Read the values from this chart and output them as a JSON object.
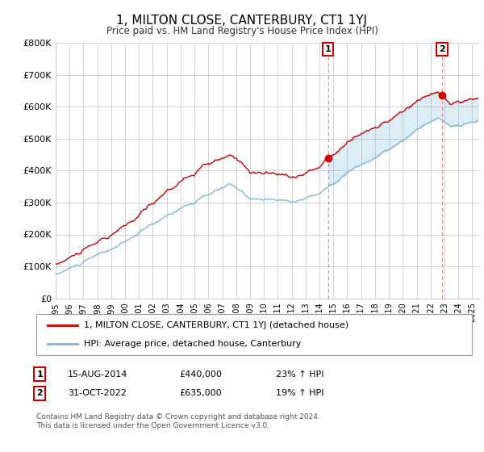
{
  "title": "1, MILTON CLOSE, CANTERBURY, CT1 1YJ",
  "subtitle": "Price paid vs. HM Land Registry's House Price Index (HPI)",
  "ylim": [
    0,
    800000
  ],
  "xlim_start": 1995.0,
  "xlim_end": 2025.5,
  "hpi_color": "#7ab8d9",
  "price_color": "#CC0000",
  "fill_color": "#d6eaf8",
  "marker1_date": 2014.62,
  "marker1_price": 440000,
  "marker1_label": "1",
  "marker2_date": 2022.83,
  "marker2_price": 635000,
  "marker2_label": "2",
  "legend_line1": "1, MILTON CLOSE, CANTERBURY, CT1 1YJ (detached house)",
  "legend_line2": "HPI: Average price, detached house, Canterbury",
  "table_row1": [
    "1",
    "15-AUG-2014",
    "£440,000",
    "23% ↑ HPI"
  ],
  "table_row2": [
    "2",
    "31-OCT-2022",
    "£635,000",
    "19% ↑ HPI"
  ],
  "footnote": "Contains HM Land Registry data © Crown copyright and database right 2024.\nThis data is licensed under the Open Government Licence v3.0.",
  "bg_color": "#ffffff",
  "grid_color": "#cccccc",
  "vline_color": "#e88080"
}
